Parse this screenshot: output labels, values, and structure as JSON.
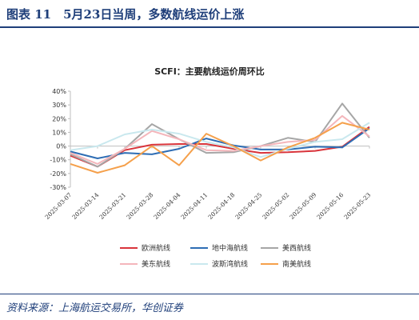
{
  "figure": {
    "title": "图表 11　5月23日当周，多数航线运价上涨",
    "source": "资料来源：上海航运交易所，华创证券"
  },
  "colors": {
    "accent": "#1f3f7a",
    "series": [
      "#d9343b",
      "#2e6db4",
      "#a6a6a6",
      "#f4b6bb",
      "#c9e8ee",
      "#f5a04b"
    ]
  },
  "chart_data": {
    "type": "line",
    "title": "SCFI：主要航线运价周环比",
    "xlabel": "",
    "ylabel": "",
    "ylim": [
      -0.3,
      0.4
    ],
    "yticks": [
      "-30%",
      "-20%",
      "-10%",
      "0%",
      "10%",
      "20%",
      "30%",
      "40%"
    ],
    "x": [
      "2025-03-07",
      "2025-03-14",
      "2025-03-21",
      "2025-03-28",
      "2025-04-04",
      "2025-04-11",
      "2025-04-18",
      "2025-04-25",
      "2025-05-02",
      "2025-05-09",
      "2025-05-16",
      "2025-05-23"
    ],
    "grid": false,
    "legend": "bottom",
    "series": [
      {
        "name": "欧洲航线",
        "values": [
          -0.07,
          -0.15,
          -0.03,
          0.01,
          0.015,
          0.015,
          -0.02,
          -0.05,
          -0.045,
          -0.035,
          -0.005,
          0.14
        ]
      },
      {
        "name": "地中海航线",
        "values": [
          -0.04,
          -0.09,
          -0.05,
          -0.06,
          -0.02,
          0.055,
          0.005,
          -0.025,
          -0.025,
          -0.005,
          -0.01,
          0.13
        ]
      },
      {
        "name": "美西航线",
        "values": [
          -0.06,
          -0.15,
          -0.02,
          0.16,
          0.05,
          -0.05,
          -0.045,
          0.0,
          0.06,
          0.03,
          0.31,
          0.06
        ]
      },
      {
        "name": "美东航线",
        "values": [
          -0.05,
          -0.13,
          -0.02,
          0.11,
          0.05,
          -0.03,
          -0.035,
          0.0,
          0.03,
          0.045,
          0.22,
          0.07
        ]
      },
      {
        "name": "波斯湾航线",
        "values": [
          -0.03,
          0.0,
          0.085,
          0.12,
          0.09,
          0.03,
          -0.01,
          -0.08,
          -0.02,
          0.03,
          0.05,
          0.17
        ]
      },
      {
        "name": "南美航线",
        "values": [
          -0.13,
          -0.195,
          -0.14,
          0.0,
          -0.14,
          0.09,
          0.0,
          -0.105,
          -0.01,
          0.06,
          0.17,
          0.12
        ]
      }
    ]
  }
}
